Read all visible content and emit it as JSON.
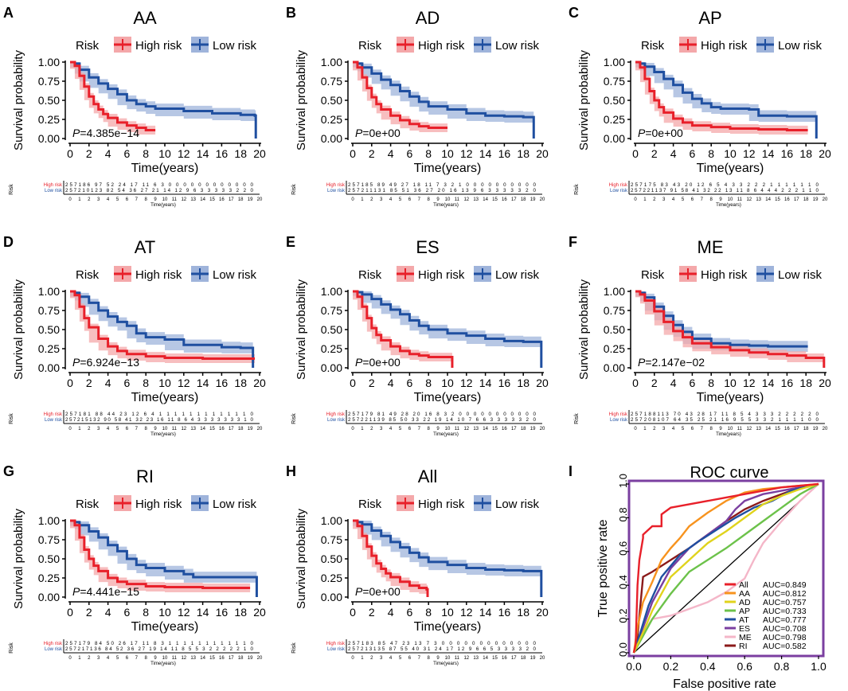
{
  "colors": {
    "high": "#e8202a",
    "high_band": "#f4a8aa",
    "low": "#1f4fa0",
    "low_band": "#9fb4db",
    "axis": "#000000",
    "roc_border": "#7b3fa0"
  },
  "common": {
    "xlabel": "Time(years)",
    "ylabel": "Survival probability",
    "legend_title": "Risk",
    "legend_high": "High risk",
    "legend_low": "Low risk",
    "xticks": [
      "0",
      "2",
      "4",
      "6",
      "8",
      "10",
      "12",
      "14",
      "16",
      "18",
      "20"
    ],
    "yticks": [
      "0.00",
      "0.25",
      "0.50",
      "0.75",
      "1.00"
    ],
    "table_title": "Risk",
    "table_row_high": "High risk",
    "table_row_low": "Low risk",
    "table_xlabel": "Time(years)",
    "table_ticks": [
      "0",
      "1",
      "2",
      "3",
      "4",
      "5",
      "6",
      "7",
      "8",
      "9",
      "10",
      "11",
      "12",
      "13",
      "14",
      "15",
      "16",
      "17",
      "18",
      "19",
      "20"
    ]
  },
  "chart_data": [
    {
      "panel": "A",
      "title": "AA",
      "type": "line",
      "pvalue": "=4.385e−14",
      "xlim": [
        0,
        20
      ],
      "ylim": [
        0,
        1
      ],
      "series": [
        {
          "name": "High risk",
          "x": [
            0,
            0.5,
            1,
            1.5,
            2,
            2.5,
            3,
            3.5,
            4,
            5,
            6,
            7,
            8,
            9
          ],
          "y": [
            1,
            0.95,
            0.82,
            0.68,
            0.55,
            0.45,
            0.38,
            0.32,
            0.27,
            0.21,
            0.17,
            0.14,
            0.11,
            0.11
          ]
        },
        {
          "name": "Low risk",
          "x": [
            0,
            0.5,
            1,
            2,
            3,
            4,
            5,
            6,
            7,
            8,
            9,
            12,
            15,
            18,
            19.5,
            19.6
          ],
          "y": [
            1,
            0.98,
            0.9,
            0.8,
            0.72,
            0.65,
            0.58,
            0.5,
            0.45,
            0.42,
            0.39,
            0.36,
            0.33,
            0.31,
            0.3,
            0.0
          ]
        }
      ],
      "risk_table": {
        "high": "257186 97 52 24 17 11 6 3 0 0 0 0 0 0 0 0 0 0 0 0",
        "low": "257210123 82 54 36 27 21 14 12 9 6 3 3 3 3 3 2 2 0"
      }
    },
    {
      "panel": "B",
      "title": "AD",
      "type": "line",
      "pvalue": "=0e+00",
      "xlim": [
        0,
        20
      ],
      "ylim": [
        0,
        1
      ],
      "series": [
        {
          "name": "High risk",
          "x": [
            0,
            0.5,
            1,
            1.5,
            2,
            2.5,
            3,
            4,
            5,
            6,
            7,
            8,
            10
          ],
          "y": [
            1,
            0.93,
            0.8,
            0.66,
            0.54,
            0.45,
            0.38,
            0.3,
            0.24,
            0.19,
            0.16,
            0.14,
            0.14
          ]
        },
        {
          "name": "Low risk",
          "x": [
            0,
            0.5,
            1,
            2,
            3,
            4,
            5,
            6,
            7,
            8,
            10,
            12,
            14,
            16,
            18,
            19,
            19.1
          ],
          "y": [
            1,
            0.98,
            0.93,
            0.85,
            0.77,
            0.7,
            0.62,
            0.55,
            0.48,
            0.42,
            0.38,
            0.33,
            0.3,
            0.29,
            0.28,
            0.28,
            0.0
          ]
        }
      ],
      "risk_table": {
        "high": "257185 89 49 27 18 11 7 3 2 1 0 0 0 0 0 0 0 0 0 0",
        "low": "257211131 85 51 36 27 20 16 13 9 6 3 3 3 3 3 2 0"
      }
    },
    {
      "panel": "C",
      "title": "AP",
      "type": "line",
      "pvalue": "=0e+00",
      "xlim": [
        0,
        20
      ],
      "ylim": [
        0,
        1
      ],
      "series": [
        {
          "name": "High risk",
          "x": [
            0,
            0.5,
            1,
            1.5,
            2,
            2.5,
            3,
            4,
            5,
            6,
            8,
            10,
            13,
            16,
            18.2
          ],
          "y": [
            1,
            0.93,
            0.78,
            0.62,
            0.5,
            0.41,
            0.34,
            0.26,
            0.21,
            0.17,
            0.15,
            0.13,
            0.12,
            0.11,
            0.11
          ]
        },
        {
          "name": "Low risk",
          "x": [
            0,
            0.5,
            1,
            2,
            3,
            4,
            5,
            6,
            7,
            8,
            9,
            12,
            13,
            16,
            18,
            19,
            19.1
          ],
          "y": [
            1,
            0.98,
            0.94,
            0.87,
            0.78,
            0.7,
            0.6,
            0.52,
            0.46,
            0.41,
            0.39,
            0.38,
            0.3,
            0.29,
            0.29,
            0.29,
            0.0
          ]
        }
      ],
      "risk_table": {
        "high": "257175 83 43 20 12 6 5 4 3 3 2 2 2 1 1 1 1 1 1 0",
        "low": "257221137 91 58 41 32 22 13 11 8 6 4 4 4 2 2 2 1 1 0"
      }
    },
    {
      "panel": "D",
      "title": "AT",
      "type": "line",
      "pvalue": "=6.924e−13",
      "xlim": [
        0,
        20
      ],
      "ylim": [
        0,
        1
      ],
      "series": [
        {
          "name": "High risk",
          "x": [
            0,
            0.5,
            1,
            1.5,
            2,
            3,
            4,
            5,
            6,
            8,
            10,
            14,
            18,
            19.5
          ],
          "y": [
            1,
            0.95,
            0.8,
            0.65,
            0.53,
            0.38,
            0.28,
            0.22,
            0.18,
            0.15,
            0.13,
            0.12,
            0.12,
            0.12
          ]
        },
        {
          "name": "Low risk",
          "x": [
            0,
            0.5,
            1,
            2,
            3,
            4,
            5,
            6,
            7,
            8,
            10,
            12,
            16,
            18,
            19.2,
            19.3
          ],
          "y": [
            1,
            0.98,
            0.93,
            0.85,
            0.75,
            0.67,
            0.6,
            0.55,
            0.45,
            0.4,
            0.37,
            0.3,
            0.27,
            0.26,
            0.26,
            0.0
          ]
        }
      ],
      "risk_table": {
        "high": "257181 88 44 23 12 6 4 1 1 1 1 1 1 1 1 1 1 1 1 0",
        "low": "257215132 90 58 41 32 23 16 11 8 6 4 3 3 3 3 3 3 3 1 0"
      }
    },
    {
      "panel": "E",
      "title": "ES",
      "type": "line",
      "pvalue": "=0e+00",
      "xlim": [
        0,
        20
      ],
      "ylim": [
        0,
        1
      ],
      "series": [
        {
          "name": "High risk",
          "x": [
            0,
            0.5,
            1,
            1.5,
            2,
            2.5,
            3,
            4,
            5,
            6,
            7,
            8,
            10.4,
            10.5
          ],
          "y": [
            1,
            0.93,
            0.8,
            0.65,
            0.52,
            0.43,
            0.36,
            0.28,
            0.22,
            0.18,
            0.16,
            0.14,
            0.14,
            0.0
          ]
        },
        {
          "name": "Low risk",
          "x": [
            0,
            0.5,
            1,
            2,
            3,
            4,
            5,
            6,
            7,
            8,
            10,
            12,
            14,
            16,
            18,
            19.8,
            19.9
          ],
          "y": [
            1,
            0.99,
            0.96,
            0.9,
            0.83,
            0.76,
            0.7,
            0.62,
            0.55,
            0.5,
            0.45,
            0.42,
            0.38,
            0.35,
            0.34,
            0.34,
            0.0
          ]
        }
      ],
      "risk_table": {
        "high": "257179 81 49 28 20 16 8 3 2 0 0 0 0 0 0 0 0 0 0 0",
        "low": "257221139 85 50 33 22 19 14 10 7 6 6 3 3 3 3 3 2 0"
      }
    },
    {
      "panel": "F",
      "title": "ME",
      "type": "line",
      "pvalue": "=2.147e−02",
      "xlim": [
        0,
        20
      ],
      "ylim": [
        0,
        1
      ],
      "series": [
        {
          "name": "High risk",
          "x": [
            0,
            0.5,
            1,
            2,
            3,
            4,
            5,
            6,
            8,
            10,
            12,
            14,
            16,
            18,
            19.8,
            19.9
          ],
          "y": [
            1,
            0.96,
            0.88,
            0.74,
            0.6,
            0.48,
            0.4,
            0.32,
            0.27,
            0.23,
            0.2,
            0.18,
            0.16,
            0.13,
            0.13,
            0.0
          ]
        },
        {
          "name": "Low risk",
          "x": [
            0,
            0.5,
            1,
            2,
            3,
            4,
            5,
            6,
            8,
            10,
            12,
            14,
            16,
            18.2
          ],
          "y": [
            1,
            0.98,
            0.92,
            0.8,
            0.68,
            0.56,
            0.47,
            0.38,
            0.32,
            0.3,
            0.29,
            0.28,
            0.28,
            0.28
          ]
        }
      ],
      "risk_table": {
        "high": "257188113 70 43 28 17 11 8 5 4 3 3 3 2 2 2 2 2 0",
        "low": "257208107 64 35 25 21 16 9 5 5 3 3 2 1 1 1 1 0 0"
      }
    },
    {
      "panel": "G",
      "title": "RI",
      "type": "line",
      "pvalue": "=4.441e−15",
      "xlim": [
        0,
        20
      ],
      "ylim": [
        0,
        1
      ],
      "series": [
        {
          "name": "High risk",
          "x": [
            0,
            0.5,
            1,
            1.5,
            2,
            2.5,
            3,
            4,
            5,
            6,
            8,
            10,
            14,
            18,
            19
          ],
          "y": [
            1,
            0.94,
            0.78,
            0.62,
            0.5,
            0.41,
            0.34,
            0.25,
            0.2,
            0.17,
            0.14,
            0.13,
            0.12,
            0.12,
            0.12
          ]
        },
        {
          "name": "Low risk",
          "x": [
            0,
            0.5,
            1,
            2,
            3,
            4,
            5,
            6,
            7,
            8,
            10,
            12,
            13,
            16,
            19,
            19.6,
            19.7
          ],
          "y": [
            1,
            0.98,
            0.94,
            0.86,
            0.78,
            0.68,
            0.6,
            0.5,
            0.42,
            0.38,
            0.34,
            0.3,
            0.26,
            0.26,
            0.26,
            0.26,
            0.0
          ]
        }
      ],
      "risk_table": {
        "high": "257179 84 50 26 17 11 8 3 1 1 1 1 1 1 1 1 1 1 1 0",
        "low": "257217136 84 52 36 27 19 14 11 8 5 5 3 2 2 2 2 2 1 0"
      }
    },
    {
      "panel": "H",
      "title": "All",
      "type": "line",
      "pvalue": "=0e+00",
      "xlim": [
        0,
        20
      ],
      "ylim": [
        0,
        1
      ],
      "series": [
        {
          "name": "High risk",
          "x": [
            0,
            0.5,
            1,
            1.5,
            2,
            2.5,
            3,
            3.5,
            4,
            5,
            6,
            7,
            7.8,
            7.9
          ],
          "y": [
            1,
            0.93,
            0.8,
            0.66,
            0.54,
            0.44,
            0.37,
            0.31,
            0.26,
            0.2,
            0.15,
            0.12,
            0.1,
            0.0
          ]
        },
        {
          "name": "Low risk",
          "x": [
            0,
            0.5,
            1,
            2,
            3,
            4,
            5,
            6,
            7,
            8,
            10,
            12,
            14,
            16,
            18,
            19.8,
            19.9
          ],
          "y": [
            1,
            0.98,
            0.95,
            0.87,
            0.8,
            0.72,
            0.65,
            0.58,
            0.52,
            0.46,
            0.42,
            0.38,
            0.36,
            0.35,
            0.34,
            0.34,
            0.0
          ]
        }
      ],
      "risk_table": {
        "high": "257183 85 47 23 13 7 3 0 0 0 0 0 0 0 0 0 0 0 0 0",
        "low": "257213135 87 55 40 31 24 17 12 9 6 6 5 3 3 3 3 2 0"
      }
    },
    {
      "panel": "I",
      "title": "ROC curve",
      "type": "line",
      "xlabel": "False positive rate",
      "ylabel": "True positive rate",
      "xticks": [
        "0.0",
        "0.2",
        "0.4",
        "0.6",
        "0.8",
        "1.0"
      ],
      "yticks": [
        "0.0",
        "0.2",
        "0.4",
        "0.6",
        "0.8",
        "1.0"
      ],
      "xlim": [
        0,
        1
      ],
      "ylim": [
        0,
        1
      ],
      "series": [
        {
          "name": "All",
          "auc": "AUC=0.849",
          "color": "#e8202a",
          "x": [
            0,
            0.01,
            0.02,
            0.03,
            0.05,
            0.05,
            0.1,
            0.15,
            0.15,
            0.2,
            0.3,
            0.4,
            0.5,
            0.6,
            0.7,
            0.8,
            0.9,
            1.0
          ],
          "y": [
            0,
            0.05,
            0.4,
            0.55,
            0.68,
            0.7,
            0.75,
            0.75,
            0.82,
            0.86,
            0.88,
            0.9,
            0.92,
            0.94,
            0.96,
            0.98,
            0.99,
            1.0
          ]
        },
        {
          "name": "AA",
          "auc": "AUC=0.812",
          "color": "#f7931e",
          "x": [
            0,
            0.02,
            0.05,
            0.1,
            0.15,
            0.2,
            0.25,
            0.3,
            0.4,
            0.5,
            0.6,
            0.7,
            0.8,
            0.9,
            1.0
          ],
          "y": [
            0,
            0.15,
            0.3,
            0.42,
            0.55,
            0.62,
            0.68,
            0.75,
            0.83,
            0.9,
            0.95,
            0.97,
            0.98,
            0.99,
            1.0
          ]
        },
        {
          "name": "AD",
          "auc": "AUC=0.757",
          "color": "#e0d31c",
          "x": [
            0,
            0.05,
            0.1,
            0.2,
            0.3,
            0.35,
            0.4,
            0.5,
            0.6,
            0.7,
            0.8,
            0.9,
            1.0
          ],
          "y": [
            0,
            0.12,
            0.25,
            0.45,
            0.55,
            0.6,
            0.65,
            0.72,
            0.8,
            0.88,
            0.93,
            0.97,
            1.0
          ]
        },
        {
          "name": "AP",
          "auc": "AUC=0.733",
          "color": "#6cc24a",
          "x": [
            0,
            0.05,
            0.1,
            0.2,
            0.3,
            0.4,
            0.5,
            0.6,
            0.7,
            0.8,
            0.9,
            1.0
          ],
          "y": [
            0,
            0.1,
            0.2,
            0.35,
            0.48,
            0.55,
            0.62,
            0.7,
            0.78,
            0.86,
            0.94,
            1.0
          ]
        },
        {
          "name": "AT",
          "auc": "AUC=0.777",
          "color": "#1f4fa0",
          "x": [
            0,
            0.03,
            0.08,
            0.15,
            0.25,
            0.35,
            0.45,
            0.55,
            0.65,
            0.75,
            0.85,
            0.95,
            1.0
          ],
          "y": [
            0,
            0.1,
            0.28,
            0.45,
            0.58,
            0.66,
            0.73,
            0.8,
            0.86,
            0.9,
            0.96,
            0.99,
            1.0
          ]
        },
        {
          "name": "ES",
          "auc": "AUC=0.708",
          "color": "#7b3fa0",
          "x": [
            0,
            0.05,
            0.1,
            0.2,
            0.3,
            0.4,
            0.5,
            0.55,
            0.6,
            0.7,
            0.8,
            0.9,
            1.0
          ],
          "y": [
            0,
            0.15,
            0.3,
            0.5,
            0.62,
            0.7,
            0.78,
            0.85,
            0.9,
            0.94,
            0.96,
            0.98,
            1.0
          ]
        },
        {
          "name": "ME",
          "auc": "AUC=0.798",
          "color": "#f4b6c8",
          "x": [
            0,
            0.05,
            0.1,
            0.2,
            0.3,
            0.4,
            0.5,
            0.6,
            0.65,
            0.7,
            0.8,
            0.9,
            1.0
          ],
          "y": [
            0,
            0.12,
            0.2,
            0.22,
            0.26,
            0.3,
            0.36,
            0.44,
            0.55,
            0.65,
            0.78,
            0.9,
            1.0
          ]
        },
        {
          "name": "RI",
          "auc": "AUC=0.582",
          "color": "#8b1a1a",
          "x": [
            0,
            0.02,
            0.05,
            0.1,
            0.2,
            0.3,
            0.4,
            0.5,
            0.6,
            0.7,
            0.8,
            0.9,
            1.0
          ],
          "y": [
            0,
            0.1,
            0.45,
            0.48,
            0.55,
            0.62,
            0.7,
            0.78,
            0.85,
            0.9,
            0.94,
            0.98,
            1.0
          ]
        }
      ]
    }
  ]
}
